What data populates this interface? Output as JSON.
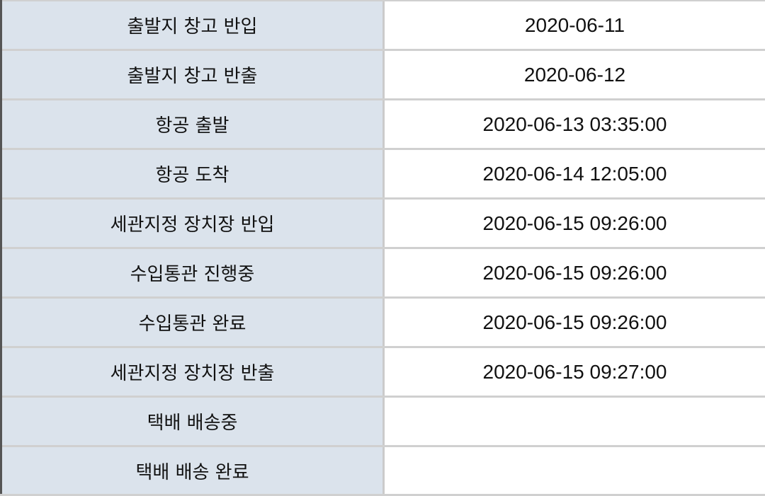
{
  "rows": [
    {
      "label": "출발지 창고 반입",
      "value": "2020-06-11"
    },
    {
      "label": "출발지 창고 반출",
      "value": "2020-06-12"
    },
    {
      "label": "항공 출발",
      "value": "2020-06-13 03:35:00"
    },
    {
      "label": "항공 도착",
      "value": "2020-06-14 12:05:00"
    },
    {
      "label": "세관지정 장치장 반입",
      "value": "2020-06-15 09:26:00"
    },
    {
      "label": "수입통관 진행중",
      "value": "2020-06-15 09:26:00"
    },
    {
      "label": "수입통관 완료",
      "value": "2020-06-15 09:26:00"
    },
    {
      "label": "세관지정 장치장 반출",
      "value": "2020-06-15 09:27:00"
    },
    {
      "label": "택배 배송중",
      "value": ""
    },
    {
      "label": "택배 배송 완료",
      "value": ""
    }
  ],
  "colors": {
    "label_bg": "#dbe3ec",
    "border": "#d0d0d0"
  }
}
